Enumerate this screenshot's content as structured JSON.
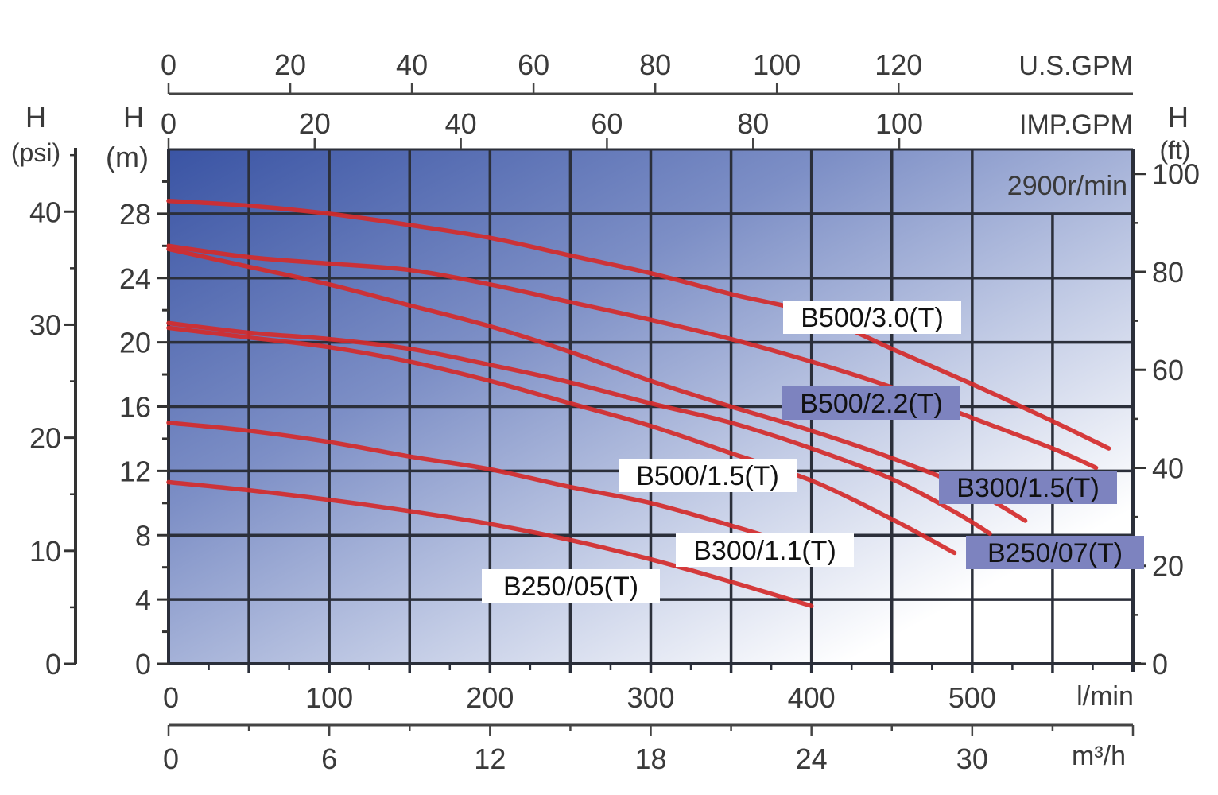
{
  "chart_data": {
    "type": "line",
    "title": "",
    "annotation": "2900r/min",
    "x": {
      "label": "l/min",
      "range": [
        0,
        600
      ],
      "ticks": [
        0,
        100,
        200,
        300,
        400,
        500
      ],
      "grid_step": 50
    },
    "x_secondary_bottom": {
      "label": "m³/h",
      "range": [
        0,
        36
      ],
      "ticks": [
        0,
        6,
        12,
        18,
        24,
        30
      ]
    },
    "x_top_1": {
      "label": "U.S.GPM",
      "ticks": [
        0,
        20,
        40,
        60,
        80,
        100,
        120
      ]
    },
    "x_top_2": {
      "label": "IMP.GPM",
      "ticks": [
        0,
        20,
        40,
        60,
        80,
        100
      ]
    },
    "y": {
      "label_top": "H",
      "label_unit": "(m)",
      "range": [
        0,
        32
      ],
      "ticks": [
        0,
        4,
        8,
        12,
        16,
        20,
        24,
        28
      ],
      "grid_step": 4
    },
    "y_left_outer": {
      "label_top": "H",
      "label_unit": "(psi)",
      "ticks": [
        0,
        10,
        20,
        30,
        40
      ]
    },
    "y_right": {
      "label_top": "H",
      "label_unit": "(ft)",
      "ticks": [
        0,
        20,
        40,
        60,
        80,
        100
      ]
    },
    "grid": true,
    "colors": {
      "curve": "#d42b2b",
      "label_highlight": "#7d83bf",
      "background_dark": "#3a54a4",
      "grid": "#2b2f3a"
    },
    "series": [
      {
        "name": "B500/3.0(T)",
        "label_style": "white",
        "points": [
          [
            0,
            28.8
          ],
          [
            50,
            28.5
          ],
          [
            100,
            28.0
          ],
          [
            150,
            27.3
          ],
          [
            200,
            26.5
          ],
          [
            250,
            25.4
          ],
          [
            300,
            24.3
          ],
          [
            350,
            23.0
          ],
          [
            400,
            21.8
          ],
          [
            450,
            19.6
          ],
          [
            500,
            17.4
          ],
          [
            550,
            15.1
          ],
          [
            585,
            13.4
          ]
        ]
      },
      {
        "name": "B500/2.2(T)",
        "label_style": "highlight",
        "points": [
          [
            0,
            26.0
          ],
          [
            50,
            25.3
          ],
          [
            100,
            24.9
          ],
          [
            150,
            24.5
          ],
          [
            200,
            23.6
          ],
          [
            250,
            22.5
          ],
          [
            300,
            21.4
          ],
          [
            350,
            20.2
          ],
          [
            400,
            18.8
          ],
          [
            450,
            17.2
          ],
          [
            500,
            15.3
          ],
          [
            550,
            13.4
          ],
          [
            577,
            12.2
          ]
        ]
      },
      {
        "name": "B500/1.5(T)",
        "label_style": "white",
        "points": [
          [
            0,
            25.8
          ],
          [
            50,
            24.7
          ],
          [
            100,
            23.6
          ],
          [
            150,
            22.3
          ],
          [
            200,
            21.0
          ],
          [
            250,
            19.4
          ],
          [
            300,
            17.6
          ],
          [
            350,
            16.0
          ],
          [
            400,
            14.5
          ],
          [
            450,
            12.8
          ],
          [
            500,
            10.8
          ],
          [
            533,
            8.9
          ]
        ]
      },
      {
        "name": "B300/1.5(T)",
        "label_style": "highlight",
        "points": [
          [
            0,
            21.2
          ],
          [
            50,
            20.6
          ],
          [
            100,
            20.2
          ],
          [
            150,
            19.6
          ],
          [
            200,
            18.6
          ],
          [
            250,
            17.5
          ],
          [
            300,
            16.2
          ],
          [
            350,
            15.0
          ],
          [
            400,
            13.4
          ],
          [
            450,
            11.5
          ],
          [
            490,
            9.4
          ],
          [
            511,
            8.1
          ]
        ]
      },
      {
        "name": "B300/1.1(T)",
        "label_style": "white",
        "points": [
          [
            0,
            20.9
          ],
          [
            50,
            20.3
          ],
          [
            100,
            19.7
          ],
          [
            150,
            18.8
          ],
          [
            200,
            17.6
          ],
          [
            250,
            16.2
          ],
          [
            300,
            14.8
          ],
          [
            350,
            13.1
          ],
          [
            400,
            11.4
          ],
          [
            450,
            9.0
          ],
          [
            489,
            6.9
          ]
        ]
      },
      {
        "name": "B250/07(T)",
        "label_style": "highlight",
        "points": [
          [
            0,
            15.0
          ],
          [
            50,
            14.5
          ],
          [
            100,
            13.8
          ],
          [
            150,
            12.9
          ],
          [
            200,
            12.1
          ],
          [
            250,
            11.0
          ],
          [
            300,
            10.0
          ],
          [
            350,
            8.6
          ],
          [
            370,
            8.0
          ]
        ]
      },
      {
        "name": "B250/05(T)",
        "label_style": "white",
        "points": [
          [
            0,
            11.3
          ],
          [
            50,
            10.8
          ],
          [
            100,
            10.2
          ],
          [
            150,
            9.5
          ],
          [
            200,
            8.7
          ],
          [
            250,
            7.7
          ],
          [
            300,
            6.5
          ],
          [
            350,
            5.1
          ],
          [
            400,
            3.6
          ]
        ]
      }
    ]
  }
}
